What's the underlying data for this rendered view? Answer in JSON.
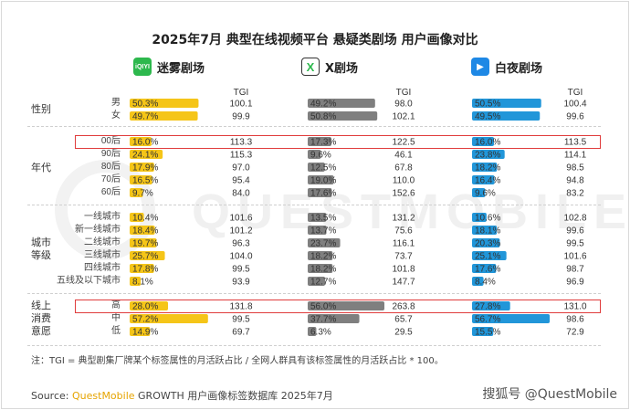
{
  "title": "2025年7月 典型在线视频平台 悬疑类剧场 用户画像对比",
  "watermark": "QUESTMOBILE",
  "platforms": [
    {
      "name": "迷雾剧场",
      "logo_text": "iQIYI",
      "color": "#f5c518",
      "logo_color": "#2db84d"
    },
    {
      "name": "X剧场",
      "logo_text": "X",
      "color": "#7f7f7f",
      "logo_color": "#333333"
    },
    {
      "name": "白夜剧场",
      "logo_text": "▶",
      "color": "#2196d9",
      "logo_color": "#1e88e5"
    }
  ],
  "tgi_header": "TGI",
  "groups": [
    {
      "label": "性别"
    },
    {
      "label": "年代"
    },
    {
      "label": "城市等级"
    },
    {
      "label": "线上消费意愿"
    }
  ],
  "chart_data": {
    "type": "bar",
    "orientation": "horizontal",
    "title": "2025年7月 典型在线视频平台 悬疑类剧场 用户画像对比",
    "categories": [
      "男",
      "女",
      "00后",
      "90后",
      "80后",
      "70后",
      "60后",
      "一线城市",
      "新一线城市",
      "二线城市",
      "三线城市",
      "四线城市",
      "五线及以下城市",
      "高",
      "中",
      "低"
    ],
    "category_groups": [
      "性别",
      "性别",
      "年代",
      "年代",
      "年代",
      "年代",
      "年代",
      "城市等级",
      "城市等级",
      "城市等级",
      "城市等级",
      "城市等级",
      "城市等级",
      "线上消费意愿",
      "线上消费意愿",
      "线上消费意愿"
    ],
    "highlighted_categories": [
      "00后",
      "高"
    ],
    "series": [
      {
        "name": "迷雾剧场",
        "values": [
          50.3,
          49.7,
          16.0,
          24.1,
          17.9,
          16.5,
          9.7,
          10.4,
          18.4,
          19.7,
          25.7,
          17.8,
          8.1,
          28.0,
          57.2,
          14.9
        ],
        "labels": [
          "50.3%",
          "49.7%",
          "16.0%",
          "24.1%",
          "17.9%",
          "16.5%",
          "9.7%",
          "10.4%",
          "18.4%",
          "19.7%",
          "25.7%",
          "17.8%",
          "8.1%",
          "28.0%",
          "57.2%",
          "14.9%"
        ],
        "tgi": [
          "100.1",
          "99.9",
          "113.3",
          "115.3",
          "97.0",
          "95.4",
          "84.0",
          "101.6",
          "101.2",
          "96.3",
          "104.0",
          "99.5",
          "93.9",
          "131.8",
          "99.5",
          "69.7"
        ]
      },
      {
        "name": "X剧场",
        "values": [
          49.2,
          50.8,
          17.3,
          9.6,
          12.5,
          19.0,
          17.6,
          13.5,
          13.7,
          23.7,
          18.2,
          18.2,
          12.7,
          56.0,
          37.7,
          6.3
        ],
        "labels": [
          "49.2%",
          "50.8%",
          "17.3%",
          "9.6%",
          "12.5%",
          "19.0%",
          "17.6%",
          "13.5%",
          "13.7%",
          "23.7%",
          "18.2%",
          "18.2%",
          "12.7%",
          "56.0%",
          "37.7%",
          "6.3%"
        ],
        "tgi": [
          "98.0",
          "102.1",
          "122.5",
          "46.1",
          "67.8",
          "110.0",
          "152.6",
          "131.2",
          "75.6",
          "116.1",
          "73.7",
          "101.8",
          "147.7",
          "263.8",
          "65.7",
          "29.5"
        ]
      },
      {
        "name": "白夜剧场",
        "values": [
          50.5,
          49.5,
          16.0,
          23.8,
          18.2,
          16.4,
          9.6,
          10.6,
          18.1,
          20.3,
          25.1,
          17.6,
          8.4,
          27.8,
          56.7,
          15.5
        ],
        "labels": [
          "50.5%",
          "49.5%",
          "16.0%",
          "23.8%",
          "18.2%",
          "16.4%",
          "9.6%",
          "10.6%",
          "18.1%",
          "20.3%",
          "25.1%",
          "17.6%",
          "8.4%",
          "27.8%",
          "56.7%",
          "15.5%"
        ],
        "tgi": [
          "100.4",
          "99.6",
          "113.5",
          "114.1",
          "98.5",
          "94.8",
          "83.2",
          "102.8",
          "99.6",
          "99.5",
          "101.6",
          "98.7",
          "96.9",
          "131.0",
          "98.6",
          "72.9"
        ]
      }
    ]
  },
  "note": "注：TGI = 典型剧集厂牌某个标签属性的月活跃占比 / 全网人群具有该标签属性的月活跃占比 * 100。",
  "source_prefix": "Source:",
  "source_brand": "QuestMobile",
  "source_rest": "GROWTH 用户画像标签数据库 2025年7月",
  "credit": "搜狐号 @QuestMobile"
}
